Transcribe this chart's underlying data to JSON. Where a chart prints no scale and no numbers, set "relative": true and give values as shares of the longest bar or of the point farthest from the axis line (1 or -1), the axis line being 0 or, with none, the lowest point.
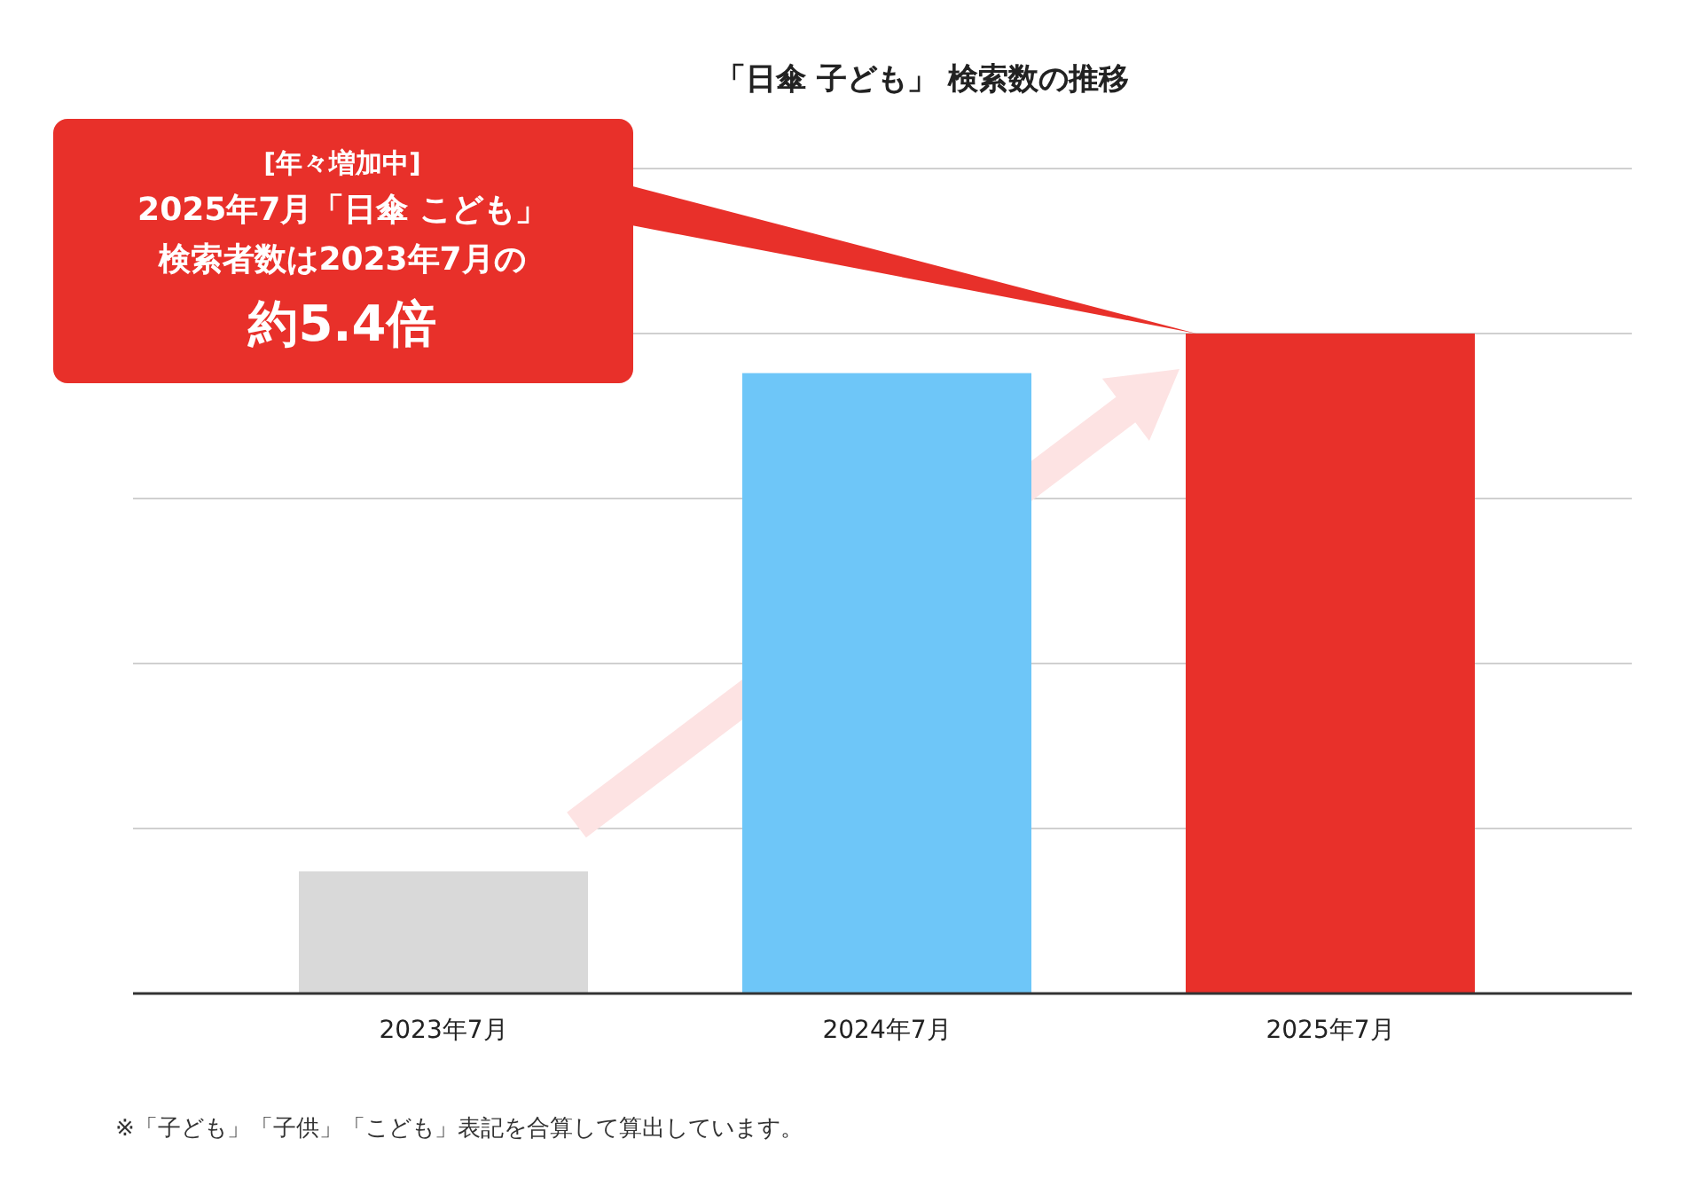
{
  "chart_data": {
    "type": "bar",
    "title": "「日傘 子ども」 検索数の推移",
    "categories": [
      "2023年7月",
      "2024年7月",
      "2025年7月"
    ],
    "values": [
      0.185,
      0.94,
      1
    ],
    "colors": [
      "#d9d9d9",
      "#6ec6f8",
      "#e8302a"
    ],
    "relative": true,
    "grid": "y",
    "annotations": [
      "[年々増加中]",
      "2025年7月「日傘 こども」",
      "検索者数は2023年7月の",
      "約5.4倍",
      "※「子ども」「子供」「こども」表記を合算して算出しています。"
    ]
  }
}
